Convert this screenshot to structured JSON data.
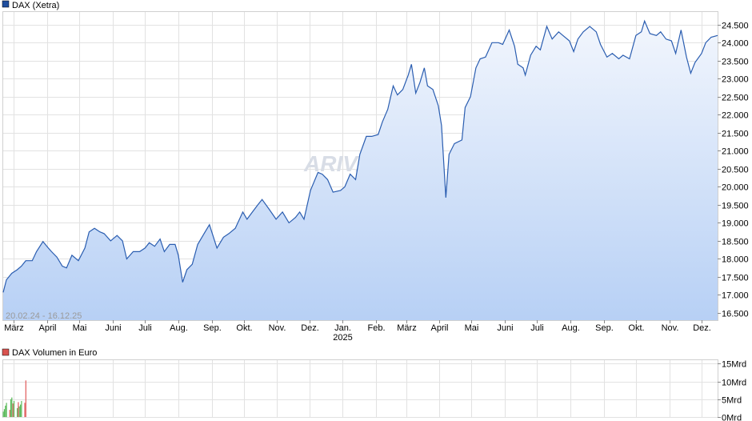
{
  "colors": {
    "line": "#2a5db0",
    "fill_top": "#f2f6fd",
    "fill_bottom": "#b7d0f5",
    "grid": "#e2e2e2",
    "volume_green": "#57b857",
    "volume_red": "#e05a5a",
    "legend_price": "#1f4e9e",
    "legend_volume": "#d9534f"
  },
  "watermark": "ARIVA.DE",
  "chart_data": [
    {
      "type": "area",
      "title": "DAX (Xetra)",
      "date_range_label": "20.02.24 - 16.12.25",
      "ylim": [
        16300,
        24850
      ],
      "y_ticks": [
        16500,
        17000,
        17500,
        18000,
        18500,
        19000,
        19500,
        20000,
        20500,
        21000,
        21500,
        22000,
        22500,
        23000,
        23500,
        24000,
        24500
      ],
      "y_tick_labels": [
        "16.500",
        "17.000",
        "17.500",
        "18.000",
        "18.500",
        "19.000",
        "19.500",
        "20.000",
        "20.500",
        "21.000",
        "21.500",
        "22.000",
        "22.500",
        "23.000",
        "23.500",
        "24.000",
        "24.500"
      ],
      "x_domain": [
        "2024-02-20",
        "2025-12-16"
      ],
      "x_ticks": [
        {
          "date": "2024-03-01",
          "label": "März"
        },
        {
          "date": "2024-04-01",
          "label": "April"
        },
        {
          "date": "2024-05-01",
          "label": "Mai"
        },
        {
          "date": "2024-06-01",
          "label": "Juni"
        },
        {
          "date": "2024-07-01",
          "label": "Juli"
        },
        {
          "date": "2024-08-01",
          "label": "Aug."
        },
        {
          "date": "2024-09-01",
          "label": "Sep."
        },
        {
          "date": "2024-10-01",
          "label": "Okt."
        },
        {
          "date": "2024-11-01",
          "label": "Nov."
        },
        {
          "date": "2024-12-01",
          "label": "Dez."
        },
        {
          "date": "2025-01-01",
          "label": "Jan.",
          "sublabel": "2025"
        },
        {
          "date": "2025-02-01",
          "label": "Feb."
        },
        {
          "date": "2025-03-01",
          "label": "März"
        },
        {
          "date": "2025-04-01",
          "label": "April"
        },
        {
          "date": "2025-05-01",
          "label": "Mai"
        },
        {
          "date": "2025-06-01",
          "label": "Juni"
        },
        {
          "date": "2025-07-01",
          "label": "Juli"
        },
        {
          "date": "2025-08-01",
          "label": "Aug."
        },
        {
          "date": "2025-09-01",
          "label": "Sep."
        },
        {
          "date": "2025-10-01",
          "label": "Okt."
        },
        {
          "date": "2025-11-01",
          "label": "Nov."
        },
        {
          "date": "2025-12-01",
          "label": "Dez."
        }
      ],
      "grid": true,
      "series": [
        {
          "name": "DAX (Xetra)",
          "points": [
            [
              "2024-02-20",
              17070
            ],
            [
              "2024-02-23",
              17420
            ],
            [
              "2024-02-28",
              17600
            ],
            [
              "2024-03-04",
              17700
            ],
            [
              "2024-03-08",
              17800
            ],
            [
              "2024-03-12",
              17950
            ],
            [
              "2024-03-18",
              17950
            ],
            [
              "2024-03-22",
              18200
            ],
            [
              "2024-03-28",
              18480
            ],
            [
              "2024-04-02",
              18300
            ],
            [
              "2024-04-05",
              18200
            ],
            [
              "2024-04-10",
              18050
            ],
            [
              "2024-04-15",
              17800
            ],
            [
              "2024-04-19",
              17750
            ],
            [
              "2024-04-24",
              18100
            ],
            [
              "2024-04-30",
              17950
            ],
            [
              "2024-05-06",
              18300
            ],
            [
              "2024-05-10",
              18750
            ],
            [
              "2024-05-15",
              18850
            ],
            [
              "2024-05-20",
              18750
            ],
            [
              "2024-05-24",
              18700
            ],
            [
              "2024-05-30",
              18500
            ],
            [
              "2024-06-05",
              18650
            ],
            [
              "2024-06-10",
              18500
            ],
            [
              "2024-06-14",
              18000
            ],
            [
              "2024-06-20",
              18200
            ],
            [
              "2024-06-26",
              18200
            ],
            [
              "2024-07-01",
              18300
            ],
            [
              "2024-07-05",
              18450
            ],
            [
              "2024-07-10",
              18350
            ],
            [
              "2024-07-15",
              18550
            ],
            [
              "2024-07-19",
              18200
            ],
            [
              "2024-07-24",
              18400
            ],
            [
              "2024-07-29",
              18400
            ],
            [
              "2024-08-01",
              18100
            ],
            [
              "2024-08-05",
              17350
            ],
            [
              "2024-08-09",
              17700
            ],
            [
              "2024-08-14",
              17850
            ],
            [
              "2024-08-19",
              18400
            ],
            [
              "2024-08-23",
              18600
            ],
            [
              "2024-08-30",
              18950
            ],
            [
              "2024-09-06",
              18300
            ],
            [
              "2024-09-12",
              18600
            ],
            [
              "2024-09-17",
              18700
            ],
            [
              "2024-09-23",
              18850
            ],
            [
              "2024-09-30",
              19300
            ],
            [
              "2024-10-04",
              19100
            ],
            [
              "2024-10-09",
              19300
            ],
            [
              "2024-10-14",
              19500
            ],
            [
              "2024-10-18",
              19650
            ],
            [
              "2024-10-24",
              19400
            ],
            [
              "2024-10-31",
              19100
            ],
            [
              "2024-11-06",
              19300
            ],
            [
              "2024-11-12",
              19000
            ],
            [
              "2024-11-18",
              19150
            ],
            [
              "2024-11-22",
              19300
            ],
            [
              "2024-11-26",
              19100
            ],
            [
              "2024-12-02",
              19900
            ],
            [
              "2024-12-09",
              20400
            ],
            [
              "2024-12-13",
              20350
            ],
            [
              "2024-12-18",
              20200
            ],
            [
              "2024-12-23",
              19850
            ],
            [
              "2024-12-30",
              19900
            ],
            [
              "2025-01-03",
              20000
            ],
            [
              "2025-01-08",
              20350
            ],
            [
              "2025-01-13",
              20200
            ],
            [
              "2025-01-17",
              20900
            ],
            [
              "2025-01-23",
              21400
            ],
            [
              "2025-01-28",
              21400
            ],
            [
              "2025-02-03",
              21450
            ],
            [
              "2025-02-07",
              21800
            ],
            [
              "2025-02-12",
              22150
            ],
            [
              "2025-02-17",
              22800
            ],
            [
              "2025-02-21",
              22550
            ],
            [
              "2025-02-26",
              22700
            ],
            [
              "2025-03-03",
              23100
            ],
            [
              "2025-03-06",
              23400
            ],
            [
              "2025-03-10",
              22600
            ],
            [
              "2025-03-14",
              22900
            ],
            [
              "2025-03-18",
              23300
            ],
            [
              "2025-03-21",
              22800
            ],
            [
              "2025-03-26",
              22700
            ],
            [
              "2025-03-31",
              22250
            ],
            [
              "2025-04-03",
              21700
            ],
            [
              "2025-04-07",
              19700
            ],
            [
              "2025-04-10",
              20900
            ],
            [
              "2025-04-15",
              21200
            ],
            [
              "2025-04-22",
              21300
            ],
            [
              "2025-04-25",
              22200
            ],
            [
              "2025-04-30",
              22500
            ],
            [
              "2025-05-05",
              23300
            ],
            [
              "2025-05-09",
              23550
            ],
            [
              "2025-05-14",
              23600
            ],
            [
              "2025-05-20",
              24000
            ],
            [
              "2025-05-26",
              24000
            ],
            [
              "2025-05-30",
              23950
            ],
            [
              "2025-06-05",
              24350
            ],
            [
              "2025-06-10",
              23900
            ],
            [
              "2025-06-13",
              23400
            ],
            [
              "2025-06-18",
              23300
            ],
            [
              "2025-06-20",
              23100
            ],
            [
              "2025-06-25",
              23650
            ],
            [
              "2025-06-30",
              23900
            ],
            [
              "2025-07-04",
              23800
            ],
            [
              "2025-07-10",
              24450
            ],
            [
              "2025-07-15",
              24100
            ],
            [
              "2025-07-21",
              24300
            ],
            [
              "2025-07-25",
              24200
            ],
            [
              "2025-07-31",
              24050
            ],
            [
              "2025-08-04",
              23750
            ],
            [
              "2025-08-08",
              24100
            ],
            [
              "2025-08-13",
              24300
            ],
            [
              "2025-08-19",
              24450
            ],
            [
              "2025-08-25",
              24300
            ],
            [
              "2025-08-29",
              23950
            ],
            [
              "2025-09-04",
              23600
            ],
            [
              "2025-09-09",
              23700
            ],
            [
              "2025-09-15",
              23550
            ],
            [
              "2025-09-19",
              23650
            ],
            [
              "2025-09-25",
              23550
            ],
            [
              "2025-10-01",
              24200
            ],
            [
              "2025-10-06",
              24300
            ],
            [
              "2025-10-09",
              24600
            ],
            [
              "2025-10-14",
              24250
            ],
            [
              "2025-10-20",
              24200
            ],
            [
              "2025-10-24",
              24300
            ],
            [
              "2025-10-29",
              24100
            ],
            [
              "2025-11-03",
              24050
            ],
            [
              "2025-11-07",
              23700
            ],
            [
              "2025-11-12",
              24350
            ],
            [
              "2025-11-17",
              23600
            ],
            [
              "2025-11-21",
              23150
            ],
            [
              "2025-11-25",
              23450
            ],
            [
              "2025-12-01",
              23700
            ],
            [
              "2025-12-05",
              24000
            ],
            [
              "2025-12-10",
              24150
            ],
            [
              "2025-12-16",
              24200
            ]
          ]
        }
      ]
    },
    {
      "type": "bar",
      "title": "DAX Volumen in Euro",
      "unit": "Mrd",
      "ylim": [
        0,
        16
      ],
      "y_ticks": [
        0,
        5,
        10,
        15
      ],
      "y_tick_labels": [
        "0Mrd",
        "5Mrd",
        "10Mrd",
        "15Mrd"
      ],
      "grid": true,
      "series": [
        {
          "name": "DAX Volumen in Euro",
          "bars": [
            {
              "date": "2024-02-20",
              "value": 1.5,
              "color": "green"
            },
            {
              "date": "2024-02-21",
              "value": 2.2,
              "color": "green"
            },
            {
              "date": "2024-02-22",
              "value": 3.2,
              "color": "green"
            },
            {
              "date": "2024-02-23",
              "value": 4.0,
              "color": "green"
            },
            {
              "date": "2024-02-26",
              "value": 2.0,
              "color": "red"
            },
            {
              "date": "2024-02-27",
              "value": 5.0,
              "color": "green"
            },
            {
              "date": "2024-02-28",
              "value": 5.5,
              "color": "green"
            },
            {
              "date": "2024-02-29",
              "value": 3.8,
              "color": "red"
            },
            {
              "date": "2024-03-01",
              "value": 4.5,
              "color": "green"
            },
            {
              "date": "2024-03-04",
              "value": 2.5,
              "color": "green"
            },
            {
              "date": "2024-03-05",
              "value": 4.2,
              "color": "red"
            },
            {
              "date": "2024-03-06",
              "value": 3.0,
              "color": "green"
            },
            {
              "date": "2024-03-07",
              "value": 3.5,
              "color": "green"
            },
            {
              "date": "2024-03-08",
              "value": 4.5,
              "color": "green"
            },
            {
              "date": "2024-03-11",
              "value": 4.0,
              "color": "red"
            },
            {
              "date": "2024-03-12",
              "value": 10.3,
              "color": "red"
            }
          ]
        }
      ]
    }
  ]
}
